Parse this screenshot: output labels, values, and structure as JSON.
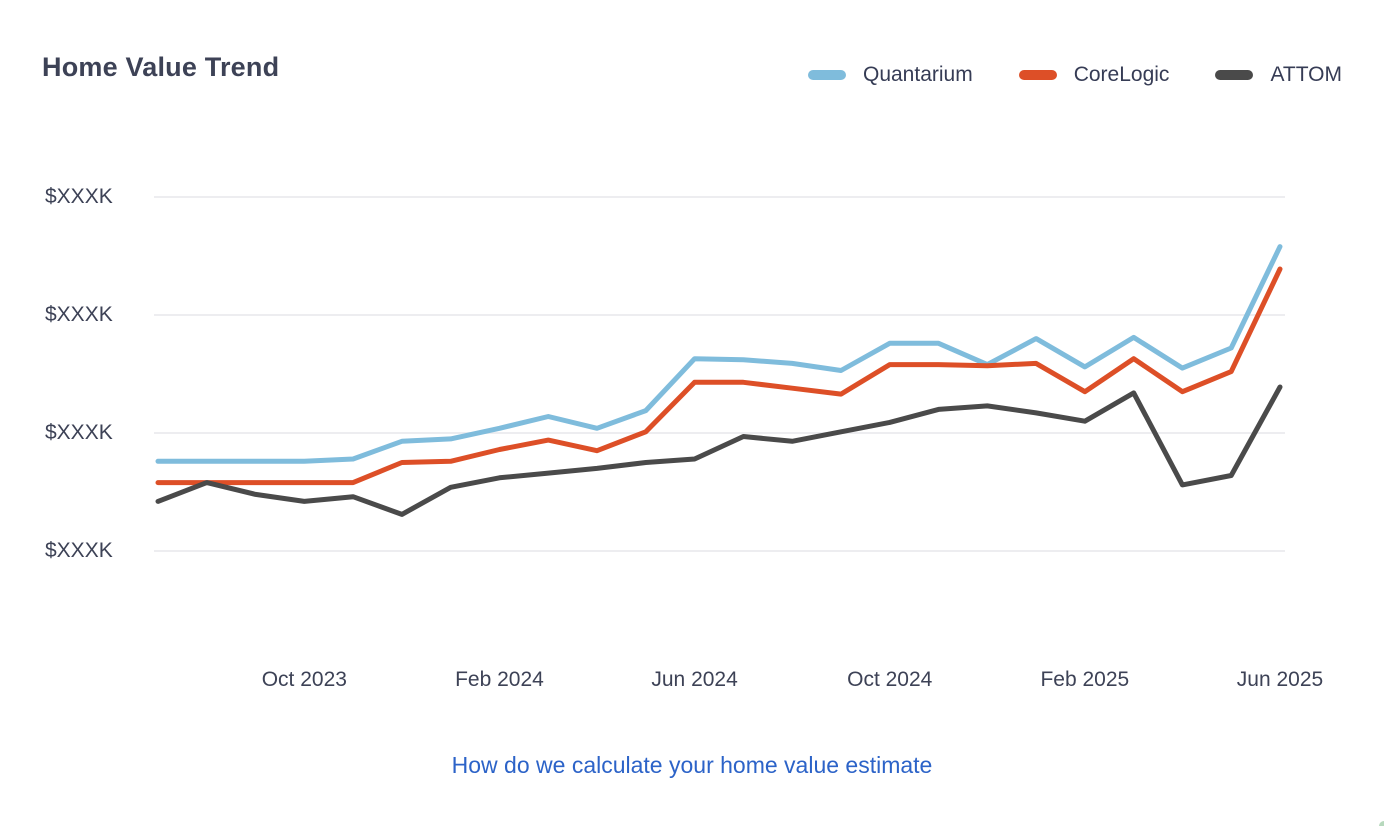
{
  "header": {
    "title": "Home Value Trend"
  },
  "chart_data": {
    "type": "line",
    "title": "Home Value Trend",
    "x": [
      "Jul 2023",
      "Aug 2023",
      "Sep 2023",
      "Oct 2023",
      "Nov 2023",
      "Dec 2023",
      "Jan 2024",
      "Feb 2024",
      "Mar 2024",
      "Apr 2024",
      "May 2024",
      "Jun 2024",
      "Jul 2024",
      "Aug 2024",
      "Sep 2024",
      "Oct 2024",
      "Nov 2024",
      "Dec 2024",
      "Jan 2025",
      "Feb 2025",
      "Mar 2025",
      "Apr 2025",
      "May 2025",
      "Jun 2025"
    ],
    "x_tick_labels": [
      "Oct 2023",
      "Feb 2024",
      "Jun 2024",
      "Oct 2024",
      "Feb 2025",
      "Jun 2025"
    ],
    "x_tick_indices": [
      3,
      7,
      11,
      15,
      19,
      23
    ],
    "y_tick_labels": [
      "$XXXK",
      "$XXXK",
      "$XXXK",
      "$XXXK"
    ],
    "y_value_scale": "relative units estimated from gridlines: 0 = bottom gridline, 3 = top gridline (dollar amounts masked as $XXXK in UI)",
    "ylim": [
      0,
      3
    ],
    "grid": "horizontal",
    "legend_position": "top-right",
    "series": [
      {
        "name": "Quantarium",
        "color": "#7fbcdc",
        "values": [
          0.76,
          0.76,
          0.76,
          0.76,
          0.78,
          0.93,
          0.95,
          1.04,
          1.14,
          1.04,
          1.19,
          1.63,
          1.62,
          1.59,
          1.53,
          1.76,
          1.76,
          1.58,
          1.8,
          1.56,
          1.81,
          1.55,
          1.72,
          2.58
        ]
      },
      {
        "name": "CoreLogic",
        "color": "#dd4f27",
        "values": [
          0.58,
          0.58,
          0.58,
          0.58,
          0.58,
          0.75,
          0.76,
          0.86,
          0.94,
          0.85,
          1.01,
          1.43,
          1.43,
          1.38,
          1.33,
          1.58,
          1.58,
          1.57,
          1.59,
          1.35,
          1.63,
          1.35,
          1.52,
          2.39
        ]
      },
      {
        "name": "ATTOM",
        "color": "#4a4a4a",
        "values": [
          0.42,
          0.58,
          0.48,
          0.42,
          0.46,
          0.31,
          0.54,
          0.62,
          0.66,
          0.7,
          0.75,
          0.78,
          0.97,
          0.93,
          1.01,
          1.09,
          1.2,
          1.23,
          1.17,
          1.1,
          1.34,
          0.56,
          0.64,
          1.39
        ]
      }
    ]
  },
  "footer": {
    "link_label": "How do we calculate your home value estimate"
  }
}
